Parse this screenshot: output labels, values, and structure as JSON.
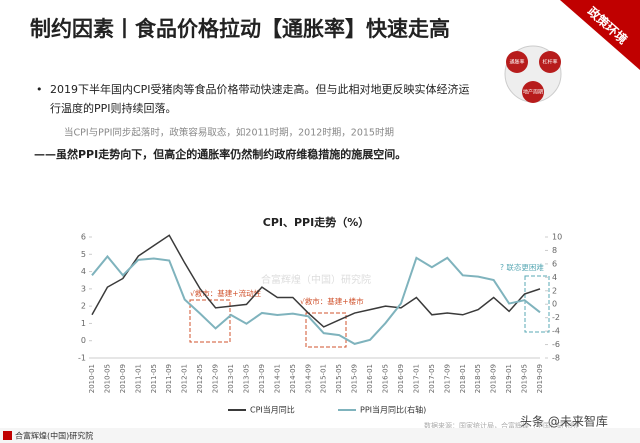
{
  "header": {
    "title": "制约因素丨食品价格拉动【通胀率】快速走高",
    "banner": "政策环境"
  },
  "diagram": {
    "labels": [
      "通胀率",
      "杠杆率",
      "地产周期"
    ]
  },
  "body": {
    "bullet": "2019下半年国内CPI受猪肉等食品价格带动快速走高。但与此相对地更反映实体经济运行温度的PPI则持续回落。",
    "note": "当CPI与PPI同步起落时，政策容易取态，如2011时期，2012时期，2015时期",
    "conclusion": "——虽然PPI走势向下，但高企的通胀率仍然制约政府维稳措施的施展空间。"
  },
  "chart_data": {
    "type": "line",
    "title": "CPI、PPI走势（%）",
    "categories": [
      "2010-01",
      "2010-05",
      "2010-09",
      "2011-01",
      "2011-05",
      "2011-09",
      "2012-01",
      "2012-05",
      "2012-09",
      "2013-01",
      "2013-05",
      "2013-09",
      "2014-01",
      "2014-05",
      "2014-09",
      "2015-01",
      "2015-05",
      "2015-09",
      "2016-01",
      "2016-05",
      "2016-09",
      "2017-01",
      "2017-05",
      "2017-09",
      "2018-01",
      "2018-05",
      "2018-09",
      "2019-01",
      "2019-05",
      "2019-09"
    ],
    "series": [
      {
        "name": "CPI当月同比",
        "color": "#3a3a3a",
        "values": [
          1.5,
          3.1,
          3.6,
          4.9,
          5.5,
          6.1,
          4.5,
          3.0,
          1.9,
          2.0,
          2.1,
          3.1,
          2.5,
          2.5,
          1.6,
          0.8,
          1.2,
          1.6,
          1.8,
          2.0,
          1.9,
          2.5,
          1.5,
          1.6,
          1.5,
          1.8,
          2.5,
          1.7,
          2.7,
          3.0
        ]
      },
      {
        "name": "PPI当月同比(右轴)",
        "color": "#7fb3bd",
        "axis": "y2",
        "values": [
          4.3,
          7.1,
          4.3,
          6.6,
          6.8,
          6.5,
          0.7,
          -1.4,
          -3.6,
          -1.6,
          -2.9,
          -1.3,
          -1.6,
          -1.4,
          -1.8,
          -4.3,
          -4.6,
          -5.9,
          -5.3,
          -2.8,
          0.1,
          6.9,
          5.5,
          6.9,
          4.3,
          4.1,
          3.6,
          0.1,
          0.6,
          -1.2
        ]
      }
    ],
    "ylim": [
      -1,
      6
    ],
    "yticks": [
      -1,
      0,
      1,
      2,
      3,
      4,
      5,
      6
    ],
    "y2lim": [
      -8,
      10
    ],
    "y2ticks": [
      -8,
      -6,
      -4,
      -2,
      0,
      2,
      4,
      6,
      8,
      10
    ],
    "annotations": [
      "√救市：基建+流动性",
      "√救市：基建+楼市",
      "? 联态更困难"
    ],
    "watermark": "合富辉煌（中国）研究院",
    "source": "数据来源：国家统计局，合富辉煌（中国）研究院"
  },
  "footer": {
    "brand": "合富辉煌(中国)研究院",
    "credit": "头条 @未来智库"
  }
}
